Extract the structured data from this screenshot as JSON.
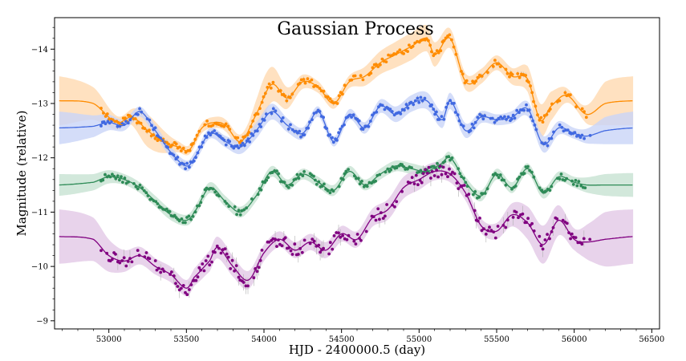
{
  "chart_data": {
    "type": "line",
    "title": "Gaussian Process",
    "xlabel": "HJD - 2400000.5 (day)",
    "ylabel": "Magnitude (relative)",
    "xlim": [
      52650,
      56550
    ],
    "ylim": [
      -8.85,
      -14.58
    ],
    "y_inverted": true,
    "x_ticks": [
      53000,
      53500,
      54000,
      54500,
      55000,
      55500,
      56000,
      56500
    ],
    "y_ticks": [
      -14,
      -13,
      -12,
      -11,
      -10,
      -9
    ],
    "grid": false,
    "legend": "none",
    "x_model_range": [
      52680,
      56380
    ],
    "x_obs_range": [
      52950,
      56080
    ],
    "series": [
      {
        "color": "#ff8c00",
        "band_color": "#ffd9b0",
        "model_x": [
          52680,
          52900,
          53050,
          53150,
          53250,
          53350,
          53450,
          53520,
          53600,
          53680,
          53750,
          53850,
          53950,
          54050,
          54150,
          54250,
          54350,
          54450,
          54550,
          54650,
          54750,
          54850,
          54950,
          55050,
          55100,
          55200,
          55300,
          55400,
          55500,
          55600,
          55700,
          55780,
          55850,
          55950,
          56080,
          56200,
          56380
        ],
        "model_y": [
          -13.05,
          -13.0,
          -12.65,
          -12.75,
          -12.5,
          -12.3,
          -12.2,
          -12.15,
          -12.55,
          -12.65,
          -12.6,
          -12.3,
          -12.8,
          -13.35,
          -13.1,
          -13.4,
          -13.3,
          -13.0,
          -13.4,
          -13.5,
          -13.75,
          -13.9,
          -14.05,
          -14.2,
          -13.9,
          -14.2,
          -13.4,
          -13.5,
          -13.75,
          -13.5,
          -13.45,
          -12.7,
          -12.95,
          -13.15,
          -12.8,
          -13.0,
          -13.05
        ],
        "band_x": [
          52680,
          52900,
          53100,
          53250,
          53450,
          53650,
          53900,
          54000,
          54200,
          54500,
          54700,
          55000,
          55300,
          55600,
          55800,
          56000,
          56100,
          56200,
          56380
        ],
        "band_half": [
          0.45,
          0.3,
          0.1,
          0.3,
          0.1,
          0.1,
          0.15,
          0.35,
          0.15,
          0.1,
          0.2,
          0.25,
          0.15,
          0.15,
          0.3,
          0.1,
          0.2,
          0.4,
          0.45
        ]
      },
      {
        "color": "#4169e1",
        "band_color": "#c9d5f7",
        "model_x": [
          52680,
          52900,
          53000,
          53100,
          53200,
          53300,
          53400,
          53500,
          53550,
          53650,
          53750,
          53850,
          53950,
          54050,
          54150,
          54250,
          54350,
          54450,
          54550,
          54650,
          54750,
          54850,
          54950,
          55050,
          55150,
          55200,
          55300,
          55400,
          55500,
          55600,
          55700,
          55800,
          55900,
          56000,
          56080,
          56200,
          56380
        ],
        "model_y": [
          -12.55,
          -12.58,
          -12.65,
          -12.6,
          -12.85,
          -12.5,
          -12.1,
          -11.85,
          -12.0,
          -12.45,
          -12.3,
          -12.2,
          -12.5,
          -12.85,
          -12.6,
          -12.45,
          -12.85,
          -12.3,
          -12.8,
          -12.55,
          -12.95,
          -12.8,
          -13.0,
          -13.05,
          -12.7,
          -13.05,
          -12.5,
          -12.75,
          -12.7,
          -12.75,
          -12.9,
          -12.25,
          -12.55,
          -12.45,
          -12.4,
          -12.5,
          -12.55
        ],
        "band_x": [
          52680,
          52900,
          53100,
          53400,
          53700,
          54000,
          54300,
          54600,
          54900,
          55200,
          55500,
          55800,
          56000,
          56100,
          56200,
          56380
        ],
        "band_half": [
          0.3,
          0.2,
          0.1,
          0.1,
          0.1,
          0.15,
          0.1,
          0.1,
          0.15,
          0.15,
          0.1,
          0.15,
          0.1,
          0.15,
          0.25,
          0.3
        ]
      },
      {
        "color": "#2e8b57",
        "band_color": "#c7e2d2",
        "model_x": [
          52680,
          52900,
          53000,
          53100,
          53200,
          53300,
          53400,
          53500,
          53550,
          53650,
          53750,
          53850,
          53950,
          54050,
          54150,
          54250,
          54350,
          54450,
          54550,
          54650,
          54750,
          54850,
          54950,
          55050,
          55150,
          55200,
          55300,
          55400,
          55500,
          55600,
          55700,
          55800,
          55900,
          56000,
          56080,
          56200,
          56380
        ],
        "model_y": [
          -11.5,
          -11.55,
          -11.65,
          -11.6,
          -11.45,
          -11.2,
          -10.95,
          -10.85,
          -11.0,
          -11.45,
          -11.2,
          -11.0,
          -11.3,
          -11.75,
          -11.5,
          -11.7,
          -11.55,
          -11.4,
          -11.75,
          -11.5,
          -11.7,
          -11.85,
          -11.8,
          -11.75,
          -11.9,
          -12.0,
          -11.55,
          -11.3,
          -11.7,
          -11.45,
          -11.8,
          -11.35,
          -11.65,
          -11.55,
          -11.5,
          -11.5,
          -11.5
        ],
        "band_x": [
          52680,
          52900,
          53100,
          53400,
          53700,
          54000,
          54300,
          54600,
          54900,
          55200,
          55500,
          55800,
          56000,
          56100,
          56200,
          56380
        ],
        "band_half": [
          0.2,
          0.15,
          0.1,
          0.1,
          0.1,
          0.1,
          0.1,
          0.1,
          0.1,
          0.1,
          0.1,
          0.1,
          0.1,
          0.15,
          0.2,
          0.22
        ]
      },
      {
        "color": "#800080",
        "band_color": "#e2c8e6",
        "model_x": [
          52680,
          52900,
          53000,
          53100,
          53200,
          53300,
          53400,
          53500,
          53550,
          53650,
          53700,
          53800,
          53900,
          54000,
          54100,
          54200,
          54300,
          54400,
          54500,
          54600,
          54700,
          54800,
          54900,
          55000,
          55100,
          55200,
          55300,
          55400,
          55500,
          55600,
          55700,
          55800,
          55900,
          56000,
          56080,
          56200,
          56380
        ],
        "model_y": [
          -10.55,
          -10.5,
          -10.2,
          -10.1,
          -10.2,
          -10.0,
          -9.85,
          -9.6,
          -9.8,
          -10.1,
          -10.35,
          -10.0,
          -9.75,
          -10.25,
          -10.5,
          -10.3,
          -10.45,
          -10.3,
          -10.6,
          -10.5,
          -10.9,
          -11.05,
          -11.45,
          -11.6,
          -11.75,
          -11.7,
          -11.35,
          -10.75,
          -10.65,
          -10.95,
          -10.8,
          -10.4,
          -10.85,
          -10.5,
          -10.45,
          -10.5,
          -10.55
        ],
        "band_x": [
          52680,
          52900,
          53100,
          53300,
          53500,
          53700,
          54000,
          54300,
          54600,
          54900,
          55200,
          55500,
          55800,
          56000,
          56100,
          56200,
          56380
        ],
        "band_half": [
          0.5,
          0.4,
          0.2,
          0.15,
          0.15,
          0.2,
          0.15,
          0.15,
          0.15,
          0.2,
          0.15,
          0.15,
          0.35,
          0.2,
          0.35,
          0.5,
          0.5
        ]
      }
    ]
  }
}
